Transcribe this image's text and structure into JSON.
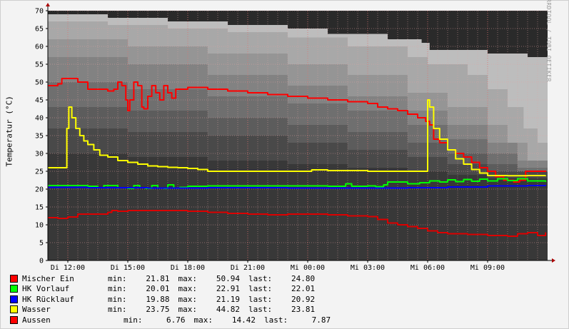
{
  "watermark": "RRDTOOL / TOBI OETIKER",
  "colors": {
    "background": "#f3f3f3",
    "plot_background": "#2a2a2a",
    "grid": "#e0a0a0",
    "axis": "#000000"
  },
  "chart_data": {
    "type": "line",
    "ylabel": "Temperatur (°C)",
    "xlabel": "",
    "title": "",
    "ylim": [
      0,
      70
    ],
    "yticks": [
      0,
      5,
      10,
      15,
      20,
      25,
      30,
      35,
      40,
      45,
      50,
      55,
      60,
      65,
      70
    ],
    "xlim": [
      0,
      25
    ],
    "xticks": [
      {
        "x": 1,
        "label": "Di 12:00"
      },
      {
        "x": 4,
        "label": "Di 15:00"
      },
      {
        "x": 7,
        "label": "Di 18:00"
      },
      {
        "x": 10,
        "label": "Di 21:00"
      },
      {
        "x": 13,
        "label": "Mi 00:00"
      },
      {
        "x": 16,
        "label": "Mi 03:00"
      },
      {
        "x": 19,
        "label": "Mi 06:00"
      },
      {
        "x": 22,
        "label": "Mi 09:00"
      }
    ],
    "grid": true,
    "legend_position": "bottom",
    "background_bands": [
      {
        "color": "#bdbdbd",
        "values": [
          [
            0,
            69
          ],
          [
            3,
            68
          ],
          [
            6,
            67
          ],
          [
            9,
            66
          ],
          [
            12,
            65
          ],
          [
            14,
            63.5
          ],
          [
            17,
            62
          ],
          [
            18.7,
            61
          ],
          [
            19.1,
            59
          ],
          [
            22,
            58
          ],
          [
            24,
            57
          ]
        ]
      },
      {
        "color": "#a8a8a8",
        "values": [
          [
            0,
            67
          ],
          [
            3,
            66
          ],
          [
            6,
            65
          ],
          [
            9,
            64
          ],
          [
            12,
            62.5
          ],
          [
            15,
            60
          ],
          [
            18,
            57
          ],
          [
            19,
            55
          ],
          [
            21,
            52
          ],
          [
            22,
            48
          ],
          [
            23,
            43
          ],
          [
            23.8,
            37
          ],
          [
            24.5,
            33
          ],
          [
            25,
            32
          ]
        ]
      },
      {
        "color": "#959595",
        "values": [
          [
            0,
            62
          ],
          [
            4,
            60
          ],
          [
            8,
            58
          ],
          [
            12,
            55
          ],
          [
            15,
            52
          ],
          [
            18,
            47
          ],
          [
            20,
            43
          ],
          [
            22,
            38
          ],
          [
            23,
            33
          ],
          [
            24,
            28
          ],
          [
            25,
            26
          ]
        ]
      },
      {
        "color": "#828282",
        "values": [
          [
            0,
            57
          ],
          [
            4,
            55
          ],
          [
            8,
            52
          ],
          [
            12,
            49
          ],
          [
            15,
            46
          ],
          [
            18,
            42
          ],
          [
            20,
            38
          ],
          [
            22,
            33
          ],
          [
            23.5,
            28
          ],
          [
            25,
            25
          ]
        ]
      },
      {
        "color": "#6f6f6f",
        "values": [
          [
            0,
            50
          ],
          [
            4,
            48
          ],
          [
            8,
            46
          ],
          [
            12,
            44
          ],
          [
            15,
            42
          ],
          [
            18,
            38
          ],
          [
            20,
            34
          ],
          [
            22,
            30
          ],
          [
            23.5,
            26
          ],
          [
            25,
            24
          ]
        ]
      },
      {
        "color": "#5c5c5c",
        "values": [
          [
            0,
            43
          ],
          [
            4,
            42
          ],
          [
            8,
            40
          ],
          [
            12,
            38
          ],
          [
            15,
            36
          ],
          [
            18,
            33
          ],
          [
            20,
            30
          ],
          [
            22,
            27
          ],
          [
            23.5,
            25
          ],
          [
            25,
            23
          ]
        ]
      },
      {
        "color": "#494949",
        "values": [
          [
            0,
            37
          ],
          [
            4,
            36
          ],
          [
            8,
            35
          ],
          [
            12,
            33
          ],
          [
            15,
            31
          ],
          [
            18,
            29
          ],
          [
            20,
            27
          ],
          [
            22,
            25
          ],
          [
            25,
            23
          ]
        ]
      },
      {
        "color": "#383838",
        "values": [
          [
            0,
            30
          ],
          [
            4,
            29
          ],
          [
            8,
            28
          ],
          [
            12,
            27
          ],
          [
            15,
            26
          ],
          [
            18,
            25
          ],
          [
            20,
            24
          ],
          [
            22,
            23
          ],
          [
            25,
            22
          ]
        ]
      }
    ],
    "series": [
      {
        "name": "Mischer Ein",
        "color": "#ff0000",
        "points": [
          [
            0,
            49
          ],
          [
            0.5,
            49.5
          ],
          [
            0.7,
            51
          ],
          [
            1.1,
            51
          ],
          [
            1.5,
            50
          ],
          [
            2,
            48
          ],
          [
            2.6,
            48
          ],
          [
            3,
            47.5
          ],
          [
            3.3,
            48
          ],
          [
            3.5,
            50
          ],
          [
            3.7,
            49
          ],
          [
            3.9,
            45
          ],
          [
            4.0,
            42
          ],
          [
            4.1,
            45
          ],
          [
            4.3,
            50
          ],
          [
            4.5,
            49
          ],
          [
            4.7,
            43
          ],
          [
            4.8,
            42.5
          ],
          [
            5.0,
            46
          ],
          [
            5.2,
            49
          ],
          [
            5.4,
            47
          ],
          [
            5.6,
            45
          ],
          [
            5.8,
            49
          ],
          [
            6.0,
            47
          ],
          [
            6.2,
            45.5
          ],
          [
            6.4,
            48
          ],
          [
            6.6,
            48
          ],
          [
            7,
            48.5
          ],
          [
            8,
            48
          ],
          [
            9,
            47.5
          ],
          [
            10,
            47
          ],
          [
            11,
            46.5
          ],
          [
            12,
            46
          ],
          [
            13,
            45.5
          ],
          [
            14,
            45
          ],
          [
            15,
            44.5
          ],
          [
            16,
            44
          ],
          [
            16.5,
            43
          ],
          [
            17,
            42.5
          ],
          [
            17.5,
            42
          ],
          [
            18,
            41
          ],
          [
            18.5,
            40
          ],
          [
            18.9,
            39
          ],
          [
            19.1,
            38
          ],
          [
            19.3,
            34
          ],
          [
            19.6,
            33
          ],
          [
            20,
            31
          ],
          [
            20.4,
            30
          ],
          [
            20.8,
            29
          ],
          [
            21.2,
            27.5
          ],
          [
            21.6,
            26
          ],
          [
            22,
            25
          ],
          [
            22.4,
            23.5
          ],
          [
            22.8,
            22.5
          ],
          [
            23.3,
            22
          ],
          [
            23.6,
            22.5
          ],
          [
            23.9,
            25
          ],
          [
            24.5,
            25
          ],
          [
            24.9,
            24.8
          ]
        ]
      },
      {
        "name": "HK Vorlauf",
        "color": "#00ff00",
        "points": [
          [
            0,
            21
          ],
          [
            2,
            20.8
          ],
          [
            2.5,
            20.4
          ],
          [
            2.8,
            21
          ],
          [
            3.5,
            20.4
          ],
          [
            4,
            20.2
          ],
          [
            4.3,
            21
          ],
          [
            4.6,
            20.4
          ],
          [
            4.9,
            20.2
          ],
          [
            5.2,
            21
          ],
          [
            5.5,
            20.3
          ],
          [
            5.8,
            20.2
          ],
          [
            6,
            21.2
          ],
          [
            6.3,
            20.3
          ],
          [
            6.6,
            20.5
          ],
          [
            7,
            20.8
          ],
          [
            8,
            20.9
          ],
          [
            10,
            20.9
          ],
          [
            12,
            20.9
          ],
          [
            14,
            20.8
          ],
          [
            14.5,
            20.8
          ],
          [
            14.9,
            21.5
          ],
          [
            15.2,
            20.8
          ],
          [
            16,
            20.9
          ],
          [
            16.4,
            20.7
          ],
          [
            16.8,
            21.2
          ],
          [
            17,
            22
          ],
          [
            17.5,
            22
          ],
          [
            18,
            21.5
          ],
          [
            18.6,
            21.8
          ],
          [
            19.1,
            22.3
          ],
          [
            19.6,
            22
          ],
          [
            20,
            22.6
          ],
          [
            20.4,
            22.1
          ],
          [
            20.8,
            22.7
          ],
          [
            21.2,
            22.2
          ],
          [
            21.6,
            22.8
          ],
          [
            22,
            22.3
          ],
          [
            22.5,
            22.9
          ],
          [
            23,
            22.4
          ],
          [
            23.5,
            22.9
          ],
          [
            24,
            22.3
          ],
          [
            24.9,
            22.01
          ]
        ]
      },
      {
        "name": "HK Rücklauf",
        "color": "#0000ff",
        "points": [
          [
            0,
            20.5
          ],
          [
            2,
            20.4
          ],
          [
            5,
            20.3
          ],
          [
            8,
            20.4
          ],
          [
            12,
            20.3
          ],
          [
            15,
            20.3
          ],
          [
            18,
            20.4
          ],
          [
            20,
            20.6
          ],
          [
            22,
            20.9
          ],
          [
            24,
            21.0
          ],
          [
            24.9,
            20.92
          ]
        ]
      },
      {
        "name": "Wasser",
        "color": "#ffff00",
        "points": [
          [
            0,
            26
          ],
          [
            0.9,
            26
          ],
          [
            0.95,
            37
          ],
          [
            1.05,
            43
          ],
          [
            1.2,
            40
          ],
          [
            1.4,
            37
          ],
          [
            1.6,
            35
          ],
          [
            1.8,
            33.5
          ],
          [
            2,
            32.5
          ],
          [
            2.3,
            31
          ],
          [
            2.6,
            29.5
          ],
          [
            3,
            29
          ],
          [
            3.5,
            28
          ],
          [
            4,
            27.5
          ],
          [
            4.5,
            27
          ],
          [
            5,
            26.5
          ],
          [
            5.5,
            26.3
          ],
          [
            6,
            26.1
          ],
          [
            6.5,
            26
          ],
          [
            7,
            25.8
          ],
          [
            7.5,
            25.5
          ],
          [
            8,
            25
          ],
          [
            10,
            25
          ],
          [
            12,
            25
          ],
          [
            13,
            25
          ],
          [
            13.2,
            25.4
          ],
          [
            14,
            25.2
          ],
          [
            16,
            25
          ],
          [
            18,
            25
          ],
          [
            18.9,
            25
          ],
          [
            19.0,
            45
          ],
          [
            19.1,
            43
          ],
          [
            19.3,
            37
          ],
          [
            19.6,
            34
          ],
          [
            20,
            31
          ],
          [
            20.4,
            28.5
          ],
          [
            20.8,
            27
          ],
          [
            21.2,
            25.5
          ],
          [
            21.6,
            24.5
          ],
          [
            22,
            23.8
          ],
          [
            23,
            23.75
          ],
          [
            24,
            23.8
          ],
          [
            24.9,
            23.81
          ]
        ]
      },
      {
        "name": "Aussen",
        "color": "#dd0000",
        "points": [
          [
            0,
            12
          ],
          [
            0.5,
            11.8
          ],
          [
            1,
            12.2
          ],
          [
            1.5,
            13
          ],
          [
            2.5,
            13
          ],
          [
            3,
            13.5
          ],
          [
            3.2,
            14
          ],
          [
            3.5,
            13.8
          ],
          [
            4,
            14
          ],
          [
            6,
            14
          ],
          [
            7,
            13.8
          ],
          [
            8,
            13.5
          ],
          [
            9,
            13.2
          ],
          [
            10,
            13
          ],
          [
            11,
            12.8
          ],
          [
            12,
            13
          ],
          [
            13,
            13
          ],
          [
            14,
            12.8
          ],
          [
            15,
            12.5
          ],
          [
            16,
            12.3
          ],
          [
            16.5,
            11.5
          ],
          [
            17,
            10.5
          ],
          [
            17.5,
            10
          ],
          [
            18,
            9.5
          ],
          [
            18.5,
            9
          ],
          [
            19,
            8.3
          ],
          [
            19.5,
            7.8
          ],
          [
            20,
            7.5
          ],
          [
            21,
            7.3
          ],
          [
            22,
            7.0
          ],
          [
            23,
            6.8
          ],
          [
            23.5,
            7.5
          ],
          [
            24,
            7.8
          ],
          [
            24.5,
            7.0
          ],
          [
            24.9,
            7.87
          ]
        ]
      }
    ]
  },
  "legend": {
    "min_label": "min:",
    "max_label": "max:",
    "last_label": "last:",
    "items": [
      {
        "name": "Mischer Ein",
        "color": "#ff0000",
        "min": "21.81",
        "max": "50.94",
        "last": "24.80"
      },
      {
        "name": "HK Vorlauf",
        "color": "#00ff00",
        "min": "20.01",
        "max": "22.91",
        "last": "22.01"
      },
      {
        "name": "HK Rücklauf",
        "color": "#0000ff",
        "min": "19.88",
        "max": "21.19",
        "last": "20.92"
      },
      {
        "name": "Wasser",
        "color": "#ffff00",
        "min": "23.75",
        "max": "44.82",
        "last": "23.81"
      },
      {
        "name": "Aussen",
        "color": "#ff0000",
        "min": "6.76",
        "max": "14.42",
        "last": "7.87"
      }
    ]
  }
}
